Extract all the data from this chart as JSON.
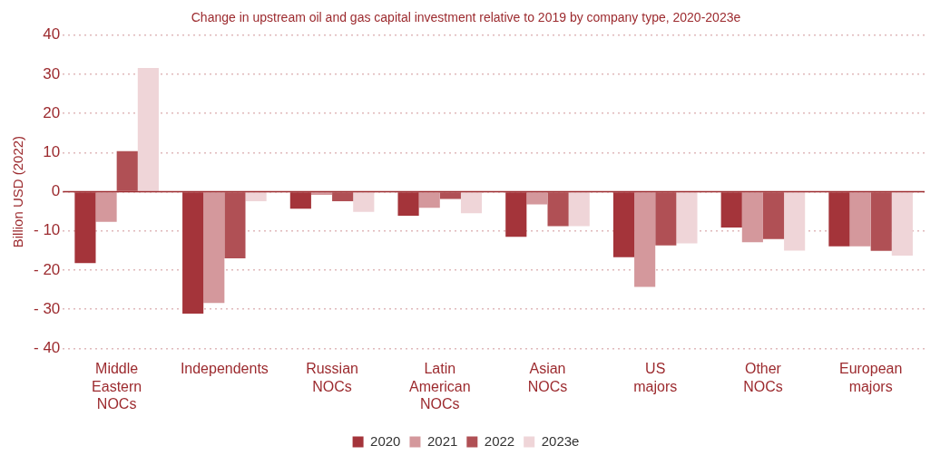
{
  "chart_data": {
    "type": "bar",
    "title": "Change in upstream oil and gas capital investment relative to 2019 by company type, 2020-2023e",
    "ylabel": "Billion USD (2022)",
    "categories": [
      "Middle Eastern NOCs",
      "Independents",
      "Russian NOCs",
      "Latin American NOCs",
      "Asian NOCs",
      "US majors",
      "Other NOCs",
      "European majors"
    ],
    "series": [
      {
        "name": "2020",
        "color": "#a4343a",
        "values": [
          -18.2,
          -31.1,
          -4.3,
          -6.1,
          -11.5,
          -16.7,
          -9.1,
          -13.9
        ]
      },
      {
        "name": "2021",
        "color": "#d4989c",
        "values": [
          -7.7,
          -28.4,
          -0.8,
          -4.1,
          -3.2,
          -24.3,
          -12.9,
          -13.9
        ]
      },
      {
        "name": "2022",
        "color": "#b05055",
        "values": [
          10.4,
          -17,
          -2.4,
          -1.8,
          -8.8,
          -13.7,
          -12.1,
          -15.1
        ]
      },
      {
        "name": "2023e",
        "color": "#efd5d8",
        "values": [
          31.6,
          -2.4,
          -5.1,
          -5.5,
          -8.8,
          -13.2,
          -15,
          -16.3
        ]
      }
    ],
    "ylim": [
      -40,
      40
    ],
    "yticks": [
      {
        "value": -40,
        "label": "- 40"
      },
      {
        "value": -30,
        "label": "- 30"
      },
      {
        "value": -20,
        "label": "- 20"
      },
      {
        "value": -10,
        "label": "- 10"
      },
      0,
      10,
      20,
      30,
      40
    ],
    "ref_lines": [
      {
        "axis": "y",
        "value": 0,
        "color": "#9c2a2e",
        "line_style": "solid"
      }
    ],
    "grid": "y",
    "legend": "bottom"
  }
}
